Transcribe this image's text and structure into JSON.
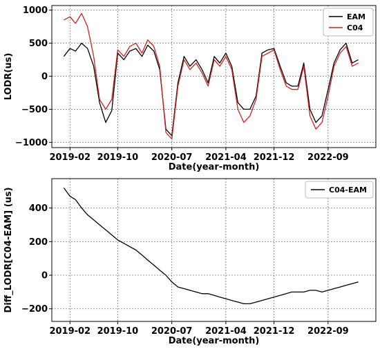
{
  "chart_data": [
    {
      "type": "line",
      "xlabel": "Date(year-month)",
      "ylabel": "LODR(us)",
      "ylim": [
        -1080,
        1070
      ],
      "yticks": [
        1000,
        500,
        0,
        -500,
        -1000
      ],
      "ytick_labels": [
        "1000",
        "500",
        "0",
        "−500",
        "−1000"
      ],
      "xlim": [
        "2018-11-01",
        "2023-05-01"
      ],
      "xticks": [
        "2019-02",
        "2019-10",
        "2020-07",
        "2021-04",
        "2021-12",
        "2022-09"
      ],
      "grid": true,
      "legend_position": "top-right",
      "series": [
        {
          "name": "EAM",
          "color": "#000000",
          "x": [
            "2019-01-01",
            "2019-02-01",
            "2019-03-01",
            "2019-04-01",
            "2019-05-01",
            "2019-06-01",
            "2019-07-01",
            "2019-08-01",
            "2019-09-01",
            "2019-10-01",
            "2019-11-01",
            "2019-12-01",
            "2020-01-01",
            "2020-02-01",
            "2020-03-01",
            "2020-04-01",
            "2020-05-01",
            "2020-06-01",
            "2020-07-01",
            "2020-08-01",
            "2020-09-01",
            "2020-10-01",
            "2020-11-01",
            "2020-12-01",
            "2021-01-01",
            "2021-02-01",
            "2021-03-01",
            "2021-04-01",
            "2021-05-01",
            "2021-06-01",
            "2021-07-01",
            "2021-08-01",
            "2021-09-01",
            "2021-10-01",
            "2021-11-01",
            "2021-12-01",
            "2022-01-01",
            "2022-02-01",
            "2022-03-01",
            "2022-04-01",
            "2022-05-01",
            "2022-06-01",
            "2022-07-01",
            "2022-08-01",
            "2022-09-01",
            "2022-10-01",
            "2022-11-01",
            "2022-12-01",
            "2023-01-01",
            "2023-02-01"
          ],
          "y": [
            300,
            420,
            380,
            500,
            420,
            150,
            -400,
            -700,
            -520,
            350,
            250,
            380,
            420,
            300,
            470,
            380,
            100,
            -800,
            -900,
            -100,
            300,
            150,
            250,
            100,
            -100,
            300,
            200,
            350,
            150,
            -400,
            -500,
            -500,
            -300,
            350,
            400,
            420,
            150,
            -100,
            -150,
            -150,
            200,
            -500,
            -700,
            -600,
            -200,
            200,
            400,
            500,
            200,
            250
          ]
        },
        {
          "name": "C04",
          "color": "#cc2222",
          "x": [
            "2019-01-01",
            "2019-02-01",
            "2019-03-01",
            "2019-04-01",
            "2019-05-01",
            "2019-06-01",
            "2019-07-01",
            "2019-08-01",
            "2019-09-01",
            "2019-10-01",
            "2019-11-01",
            "2019-12-01",
            "2020-01-01",
            "2020-02-01",
            "2020-03-01",
            "2020-04-01",
            "2020-05-01",
            "2020-06-01",
            "2020-07-01",
            "2020-08-01",
            "2020-09-01",
            "2020-10-01",
            "2020-11-01",
            "2020-12-01",
            "2021-01-01",
            "2021-02-01",
            "2021-03-01",
            "2021-04-01",
            "2021-05-01",
            "2021-06-01",
            "2021-07-01",
            "2021-08-01",
            "2021-09-01",
            "2021-10-01",
            "2021-11-01",
            "2021-12-01",
            "2022-01-01",
            "2022-02-01",
            "2022-03-01",
            "2022-04-01",
            "2022-05-01",
            "2022-06-01",
            "2022-07-01",
            "2022-08-01",
            "2022-09-01",
            "2022-10-01",
            "2022-11-01",
            "2022-12-01",
            "2023-01-01",
            "2023-02-01"
          ],
          "y": [
            850,
            900,
            800,
            950,
            750,
            300,
            -350,
            -500,
            -350,
            400,
            300,
            450,
            500,
            350,
            550,
            450,
            150,
            -850,
            -950,
            -150,
            250,
            100,
            200,
            50,
            -150,
            250,
            150,
            300,
            100,
            -500,
            -700,
            -600,
            -350,
            300,
            350,
            400,
            100,
            -150,
            -200,
            -200,
            150,
            -600,
            -800,
            -700,
            -300,
            150,
            350,
            450,
            150,
            200
          ]
        }
      ]
    },
    {
      "type": "line",
      "xlabel": "Date(year-month)",
      "ylabel": "Diff_LODR[C04-EAM] (us)",
      "ylim": [
        -275,
        575
      ],
      "yticks": [
        400,
        200,
        0,
        -200
      ],
      "ytick_labels": [
        "400",
        "200",
        "0",
        "−200"
      ],
      "xlim": [
        "2018-11-01",
        "2023-05-01"
      ],
      "xticks": [
        "2019-02",
        "2019-10",
        "2020-07",
        "2021-04",
        "2021-12",
        "2022-09"
      ],
      "grid": true,
      "legend_position": "top-right",
      "series": [
        {
          "name": "C04-EAM",
          "color": "#000000",
          "x": [
            "2019-01-01",
            "2019-02-01",
            "2019-03-01",
            "2019-04-01",
            "2019-05-01",
            "2019-06-01",
            "2019-07-01",
            "2019-08-01",
            "2019-09-01",
            "2019-10-01",
            "2019-11-01",
            "2019-12-01",
            "2020-01-01",
            "2020-02-01",
            "2020-03-01",
            "2020-04-01",
            "2020-05-01",
            "2020-06-01",
            "2020-07-01",
            "2020-08-01",
            "2020-09-01",
            "2020-10-01",
            "2020-11-01",
            "2020-12-01",
            "2021-01-01",
            "2021-02-01",
            "2021-03-01",
            "2021-04-01",
            "2021-05-01",
            "2021-06-01",
            "2021-07-01",
            "2021-08-01",
            "2021-09-01",
            "2021-10-01",
            "2021-11-01",
            "2021-12-01",
            "2022-01-01",
            "2022-02-01",
            "2022-03-01",
            "2022-04-01",
            "2022-05-01",
            "2022-06-01",
            "2022-07-01",
            "2022-08-01",
            "2022-09-01",
            "2022-10-01",
            "2022-11-01",
            "2022-12-01",
            "2023-01-01",
            "2023-02-01"
          ],
          "y": [
            520,
            470,
            450,
            400,
            360,
            330,
            300,
            270,
            240,
            210,
            190,
            170,
            150,
            120,
            90,
            60,
            30,
            0,
            -40,
            -70,
            -80,
            -90,
            -100,
            -110,
            -110,
            -120,
            -130,
            -140,
            -150,
            -160,
            -170,
            -170,
            -160,
            -150,
            -140,
            -130,
            -120,
            -110,
            -100,
            -100,
            -100,
            -90,
            -90,
            -100,
            -90,
            -80,
            -70,
            -60,
            -50,
            -40
          ]
        }
      ]
    }
  ]
}
